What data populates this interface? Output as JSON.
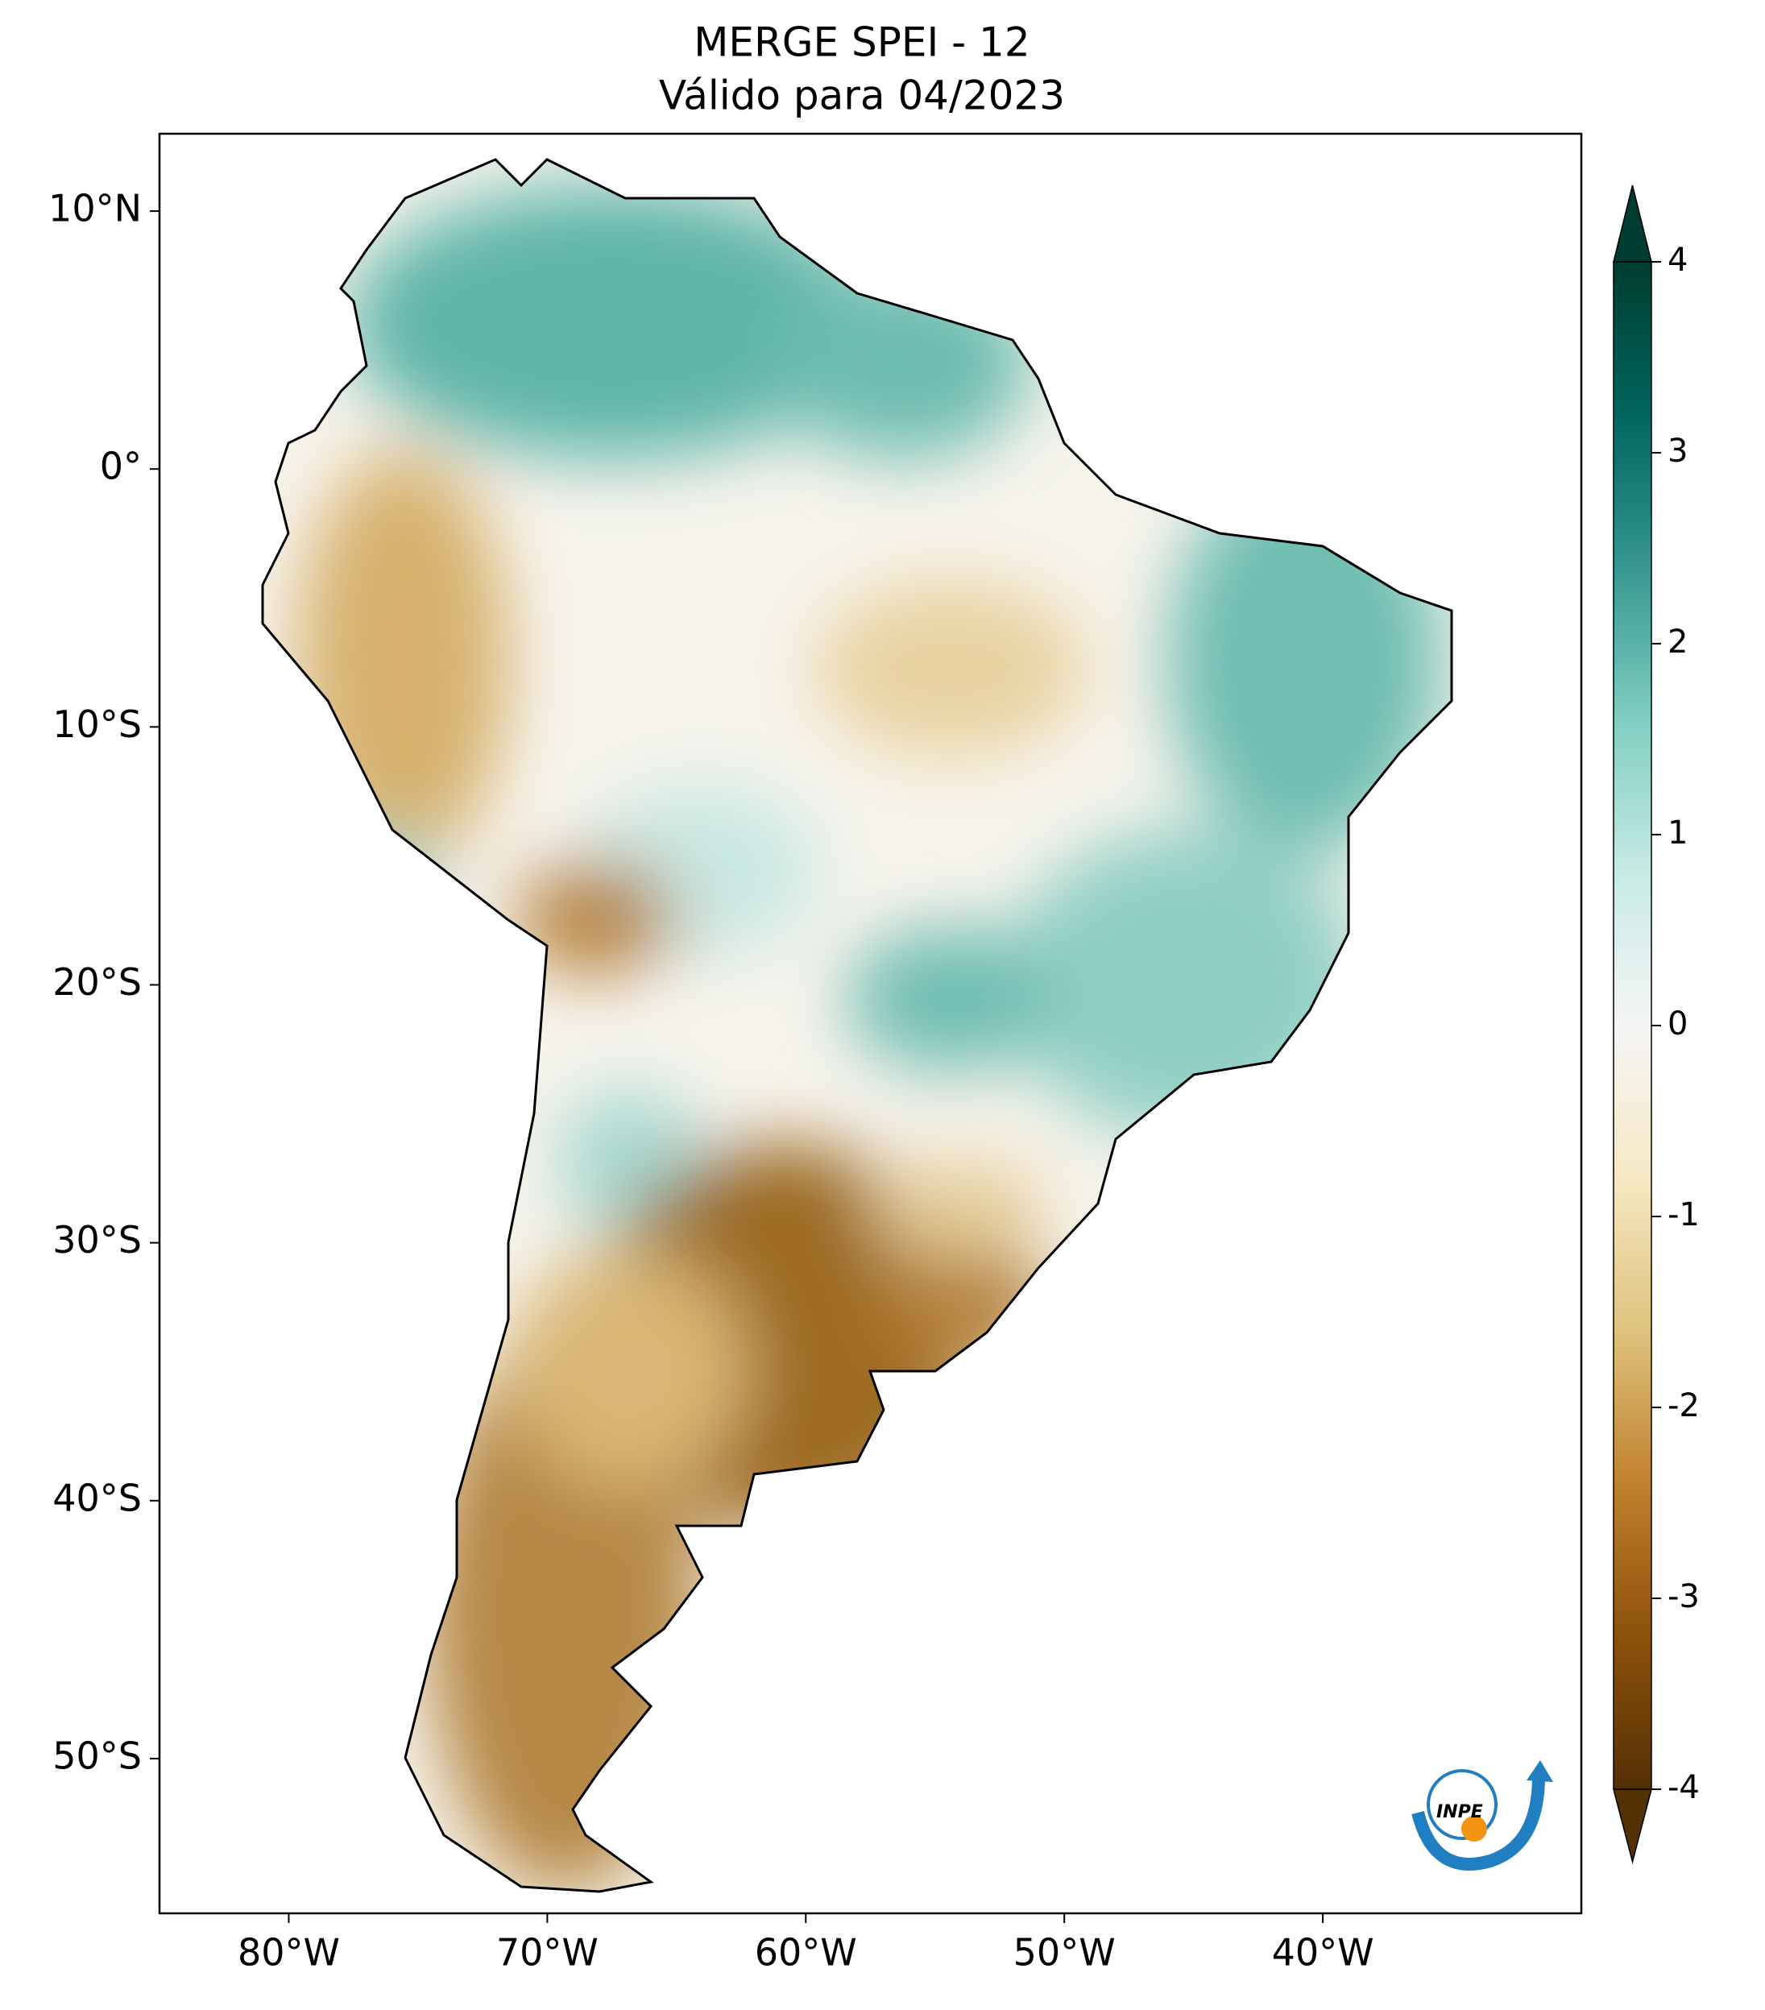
{
  "title": [
    "MERGE   SPEI - 12",
    "Válido para 04/2023"
  ],
  "map": {
    "lonlim": [
      -85,
      -30
    ],
    "latlim": [
      -56,
      13
    ],
    "lon_ticks": [
      {
        "value": -80,
        "label": "80°W"
      },
      {
        "value": -70,
        "label": "70°W"
      },
      {
        "value": -60,
        "label": "60°W"
      },
      {
        "value": -50,
        "label": "50°W"
      },
      {
        "value": -40,
        "label": "40°W"
      }
    ],
    "lat_ticks": [
      {
        "value": 10,
        "label": "10°N"
      },
      {
        "value": 0,
        "label": "0°"
      },
      {
        "value": -10,
        "label": "10°S"
      },
      {
        "value": -20,
        "label": "20°S"
      },
      {
        "value": -30,
        "label": "30°S"
      },
      {
        "value": -40,
        "label": "40°S"
      },
      {
        "value": -50,
        "label": "50°S"
      }
    ]
  },
  "colorbar": {
    "lim": [
      -4,
      4
    ],
    "ticks": [
      -4,
      -3,
      -2,
      -1,
      0,
      1,
      2,
      3,
      4
    ],
    "colors": [
      "#543005",
      "#8c510a",
      "#bf812d",
      "#dfc27d",
      "#f6e8c3",
      "#f5f5f5",
      "#c7eae5",
      "#80cdc1",
      "#35978f",
      "#01665e",
      "#003c30"
    ]
  },
  "logo": "INPE"
}
